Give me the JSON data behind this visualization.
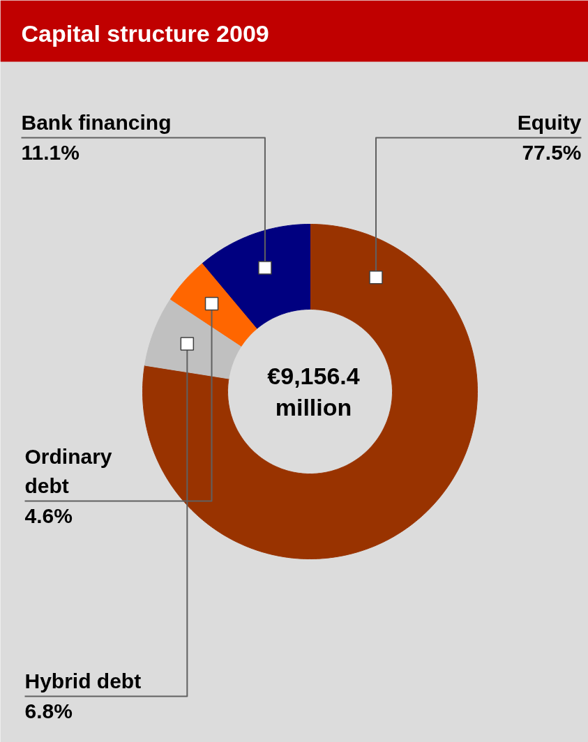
{
  "chart_data": {
    "type": "donut",
    "title": "Capital structure 2009",
    "categories": [
      "Equity",
      "Hybrid debt",
      "Ordinary debt",
      "Bank financing"
    ],
    "values": [
      77.5,
      6.8,
      4.6,
      11.1
    ],
    "colors": [
      "#993300",
      "#c0c0c0",
      "#ff6600",
      "#000080"
    ],
    "value_labels": [
      "77.5%",
      "6.8%",
      "4.6%",
      "11.1%"
    ],
    "annotations": [
      "€9,156.4 million"
    ]
  }
}
